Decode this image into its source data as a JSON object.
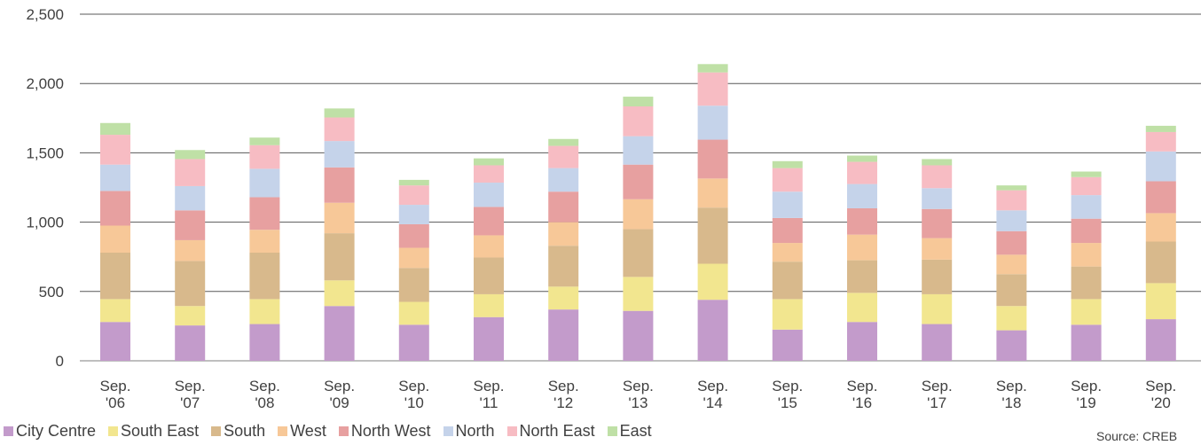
{
  "chart_data": {
    "type": "bar",
    "stacked": true,
    "categories": [
      [
        "Sep.",
        "'06"
      ],
      [
        "Sep.",
        "'07"
      ],
      [
        "Sep.",
        "'08"
      ],
      [
        "Sep.",
        "'09"
      ],
      [
        "Sep.",
        "'10"
      ],
      [
        "Sep.",
        "'11"
      ],
      [
        "Sep.",
        "'12"
      ],
      [
        "Sep.",
        "'13"
      ],
      [
        "Sep.",
        "'14"
      ],
      [
        "Sep.",
        "'15"
      ],
      [
        "Sep.",
        "'16"
      ],
      [
        "Sep.",
        "'17"
      ],
      [
        "Sep.",
        "'18"
      ],
      [
        "Sep.",
        "'19"
      ],
      [
        "Sep.",
        "'20"
      ]
    ],
    "ylim": [
      0,
      2500
    ],
    "yticks": [
      "0",
      "500",
      "1,000",
      "1,500",
      "2,000",
      "2,500"
    ],
    "ytick_values": [
      0,
      500,
      1000,
      1500,
      2000,
      2500
    ],
    "grid": true,
    "legend_position": "bottom-left",
    "series": [
      {
        "name": "City Centre",
        "color": "#c39bcb",
        "values": [
          280,
          255,
          265,
          395,
          260,
          315,
          370,
          360,
          440,
          225,
          280,
          265,
          220,
          260,
          300
        ]
      },
      {
        "name": "South East",
        "color": "#f2e68f",
        "values": [
          165,
          140,
          180,
          185,
          165,
          165,
          165,
          245,
          260,
          220,
          210,
          215,
          175,
          185,
          260
        ]
      },
      {
        "name": "South",
        "color": "#d8b98c",
        "values": [
          335,
          325,
          335,
          340,
          245,
          265,
          295,
          345,
          405,
          270,
          235,
          250,
          230,
          235,
          300
        ]
      },
      {
        "name": "West",
        "color": "#f7c898",
        "values": [
          195,
          150,
          165,
          220,
          145,
          160,
          170,
          215,
          210,
          135,
          185,
          155,
          140,
          170,
          205
        ]
      },
      {
        "name": "North West",
        "color": "#e7a0a0",
        "values": [
          250,
          215,
          235,
          255,
          170,
          205,
          220,
          250,
          280,
          180,
          190,
          210,
          170,
          175,
          230
        ]
      },
      {
        "name": "North",
        "color": "#c5d3ea",
        "values": [
          190,
          175,
          205,
          190,
          140,
          175,
          170,
          205,
          245,
          190,
          175,
          150,
          150,
          170,
          215
        ]
      },
      {
        "name": "North East",
        "color": "#f7bcc3",
        "values": [
          215,
          195,
          170,
          170,
          140,
          125,
          160,
          215,
          240,
          170,
          160,
          165,
          145,
          130,
          140
        ]
      },
      {
        "name": "East",
        "color": "#bfe0a6",
        "values": [
          85,
          65,
          55,
          65,
          40,
          50,
          50,
          70,
          60,
          50,
          45,
          45,
          35,
          40,
          45
        ]
      }
    ]
  },
  "source": "Source: CREB"
}
